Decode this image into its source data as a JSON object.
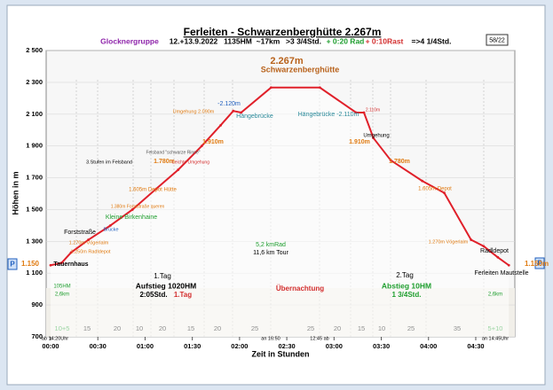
{
  "chart_data": {
    "type": "line",
    "title": "Ferleiten - Schwarzenberghütte  2.267m",
    "header_items": [
      {
        "text": "Glocknergruppe",
        "color": "#8e24aa"
      },
      {
        "text": "12.+13.9.2022",
        "color": "#000000"
      },
      {
        "text": "1135HM",
        "color": "#000000"
      },
      {
        "text": "~17km",
        "color": "#000000"
      },
      {
        "text": ">3 3/4Std.",
        "color": "#000000"
      },
      {
        "text": "+ 0:20 Rad",
        "color": "#1e9e2e"
      },
      {
        "text": "+ 0:10Rast",
        "color": "#d32f2f"
      },
      {
        "text": "=>4 1/4Std.",
        "color": "#000000"
      }
    ],
    "page_number": "58/22",
    "ylabel": "Höhen in m",
    "xlabel": "Zeit in Stunden",
    "parking_label": "P",
    "x": [
      0,
      7,
      13,
      24,
      38,
      52,
      67,
      81,
      96,
      108,
      116,
      121,
      140,
      171,
      194,
      199,
      205,
      216,
      236,
      250,
      267,
      275,
      284,
      291
    ],
    "series": [
      {
        "name": "Höhenprofil",
        "color": "#e0202a",
        "values": [
          1150,
          1165,
          1230,
          1310,
          1400,
          1500,
          1630,
          1750,
          1900,
          2030,
          2120,
          2110,
          2267,
          2267,
          2110,
          2110,
          1950,
          1810,
          1680,
          1605,
          1310,
          1270,
          1200,
          1150
        ]
      }
    ],
    "xlim": [
      0,
      292
    ],
    "ylim": [
      700,
      2500
    ],
    "xticks": [
      {
        "value": 0,
        "label": "00:00"
      },
      {
        "value": 30,
        "label": "00:30"
      },
      {
        "value": 60,
        "label": "01:00"
      },
      {
        "value": 90,
        "label": "01:30"
      },
      {
        "value": 120,
        "label": "02:00"
      },
      {
        "value": 150,
        "label": "02:30"
      },
      {
        "value": 180,
        "label": "03:00"
      },
      {
        "value": 210,
        "label": "03:30"
      },
      {
        "value": 240,
        "label": "04:00"
      },
      {
        "value": 270,
        "label": "04:30"
      }
    ],
    "yticks": [
      700,
      900,
      {
        "value": 1100,
        "label": "1 100"
      },
      {
        "value": 1300,
        "label": "1 300"
      },
      {
        "value": 1500,
        "label": "1 500"
      },
      {
        "value": 1700,
        "label": "1 700"
      },
      {
        "value": 1900,
        "label": "1 900"
      },
      {
        "value": 2100,
        "label": "2 100"
      },
      {
        "value": 2300,
        "label": "2 300"
      },
      {
        "value": 2500,
        "label": "2 500"
      }
    ],
    "grid": true,
    "segment_labels": [
      "10+5",
      "15",
      "20",
      "10",
      "20",
      "15",
      "20",
      "25",
      "25",
      "20",
      "15",
      "10",
      "25",
      "35",
      "5+10"
    ],
    "annotations": [
      {
        "text": "2.267m",
        "color": "#b8621b"
      },
      {
        "text": "Schwarzenberghütte",
        "color": "#b8621b"
      },
      {
        "text": "1.Tag",
        "color": "#000000"
      },
      {
        "text": "Aufstieg 1020HM",
        "color": "#000000"
      },
      {
        "text": "2:05Std.",
        "color": "#000000"
      },
      {
        "text": "1.Tag",
        "color": "#d32f2f"
      },
      {
        "text": "Übernachtung",
        "color": "#d32f2f"
      },
      {
        "text": "2.Tag",
        "color": "#000000"
      },
      {
        "text": "Abstieg 10HM",
        "color": "#1e9e2e"
      },
      {
        "text": "1 3/4Std.",
        "color": "#1e9e2e"
      },
      {
        "text": "5,2 kmRad",
        "color": "#1e9e2e"
      },
      {
        "text": "11,6 km Tour",
        "color": "#000000"
      },
      {
        "text": "1.150",
        "color": "#e07a10"
      },
      {
        "text": "1.150m",
        "color": "#e07a10"
      },
      {
        "text": "Tauernhaus",
        "color": "#000000"
      },
      {
        "text": "Forststraße",
        "color": "#000000"
      },
      {
        "text": "1.250m Radldepot",
        "color": "#e07a10"
      },
      {
        "text": "Radldepot",
        "color": "#000000"
      },
      {
        "text": "Ferleiten Mautstelle",
        "color": "#000000"
      },
      {
        "text": "Hängebrücke",
        "color": "#2a8a9a"
      },
      {
        "text": "Hängebrücke -2.110m",
        "color": "#2a8a9a"
      },
      {
        "text": "-2.120m",
        "color": "#1f5fbf"
      },
      {
        "text": "1.910m",
        "color": "#e07a10"
      },
      {
        "text": "1.780m",
        "color": "#e07a10"
      },
      {
        "text": "1.605m Depot Hütte",
        "color": "#e07a10"
      },
      {
        "text": "Kleine Birkenhaine",
        "color": "#1e9e2e"
      },
      {
        "text": "Brücke",
        "color": "#1f5fbf"
      },
      {
        "text": "1.380m Forststraße queren",
        "color": "#e07a10"
      },
      {
        "text": "Umgehung 2.090m",
        "color": "#e07a10"
      },
      {
        "text": "Umgehung",
        "color": "#000000"
      },
      {
        "text": "1.910m",
        "color": "#e07a10"
      },
      {
        "text": "1.780m",
        "color": "#e07a10"
      },
      {
        "text": "1.605m Depot",
        "color": "#e07a10"
      },
      {
        "text": "1.270m Vögerlalm",
        "color": "#e07a10"
      },
      {
        "text": "1.270m Vögerlalm",
        "color": "#e07a10"
      },
      {
        "text": "Felsband \"schwarze Rinne\"",
        "color": "#555555"
      },
      {
        "text": "Leichte Umgehung",
        "color": "#d32f2f"
      },
      {
        "text": "3.Stufen im Felsband",
        "color": "#000000"
      },
      {
        "text": "an 16:50",
        "color": "#000000"
      },
      {
        "text": "12:45 ab",
        "color": "#000000"
      },
      {
        "text": "ab 14:20Uhr",
        "color": "#000000"
      },
      {
        "text": "an 14:45Uhr",
        "color": "#000000"
      },
      {
        "text": "105HM",
        "color": "#1e9e2e"
      },
      {
        "text": "2,6km",
        "color": "#1e9e2e"
      },
      {
        "text": "2,6km",
        "color": "#1e9e2e"
      },
      {
        "text": "2.110m",
        "color": "#d32f2f"
      }
    ]
  }
}
